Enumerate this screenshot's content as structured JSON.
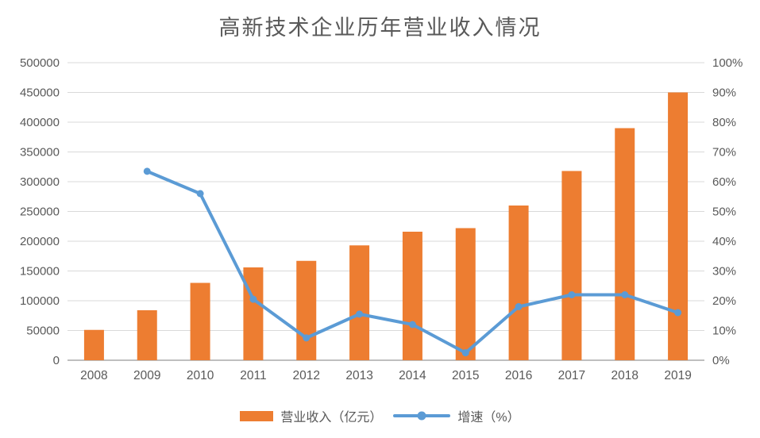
{
  "title": "高新技术企业历年营业收入情况",
  "colors": {
    "bar": "#ED7D31",
    "line": "#5B9BD5",
    "grid": "#D9D9D9",
    "axis": "#BFBFBF",
    "text": "#595959"
  },
  "legend": {
    "revenue_label": "营业收入（亿元）",
    "growth_label": "增速（%）"
  },
  "chart_data": {
    "type": "bar",
    "subtype": "combo-bar-line",
    "title": "高新技术企业历年营业收入情况",
    "categories": [
      "2008",
      "2009",
      "2010",
      "2011",
      "2012",
      "2013",
      "2014",
      "2015",
      "2016",
      "2017",
      "2018",
      "2019"
    ],
    "series": [
      {
        "name": "营业收入（亿元）",
        "type": "bar",
        "axis": "left",
        "values": [
          51000,
          84000,
          130000,
          156000,
          167000,
          193000,
          216000,
          222000,
          260000,
          318000,
          390000,
          450000
        ]
      },
      {
        "name": "增速（%）",
        "type": "line",
        "axis": "right",
        "values": [
          null,
          63.5,
          56,
          20.5,
          7.5,
          15.5,
          12,
          2.5,
          18,
          22,
          22,
          16
        ]
      }
    ],
    "left_axis": {
      "min": 0,
      "max": 500000,
      "step": 50000,
      "tick_labels": [
        "0",
        "50000",
        "100000",
        "150000",
        "200000",
        "250000",
        "300000",
        "350000",
        "400000",
        "450000",
        "500000"
      ]
    },
    "right_axis": {
      "min": 0,
      "max": 100,
      "step": 10,
      "tick_labels": [
        "0%",
        "10%",
        "20%",
        "30%",
        "40%",
        "50%",
        "60%",
        "70%",
        "80%",
        "90%",
        "100%"
      ]
    },
    "grid": true,
    "legend_position": "bottom",
    "xlabel": "",
    "ylabel": ""
  }
}
